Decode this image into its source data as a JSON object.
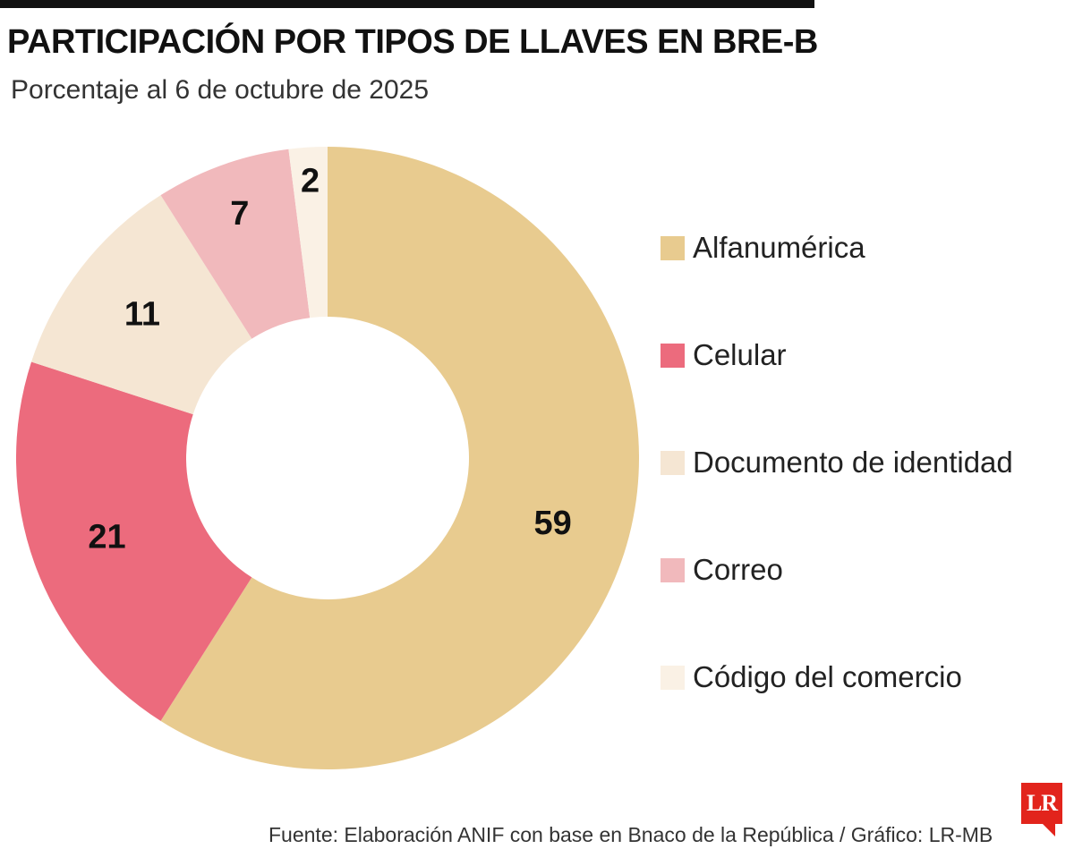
{
  "header": {
    "title": "PARTICIPACIÓN POR TIPOS DE LLAVES EN BRE-B",
    "subtitle": "Porcentaje al 6 de octubre de 2025"
  },
  "chart_data": {
    "type": "pie",
    "title": "PARTICIPACIÓN POR TIPOS DE LLAVES EN BRE-B",
    "subtitle": "Porcentaje al 6 de octubre de 2025",
    "donut": true,
    "legend_position": "right",
    "slices": [
      {
        "name": "Alfanumérica",
        "value": 59,
        "label": "59",
        "color": "#e8cb8f"
      },
      {
        "name": "Celular",
        "value": 21,
        "label": "21",
        "color": "#ec6b7d"
      },
      {
        "name": "Documento de identidad",
        "value": 11,
        "label": "11",
        "color": "#f5e6d3"
      },
      {
        "name": "Correo",
        "value": 7,
        "label": "7",
        "color": "#f1b9bc"
      },
      {
        "name": "Código del comercio",
        "value": 2,
        "label": "2",
        "color": "#faf1e5"
      }
    ]
  },
  "legend": {
    "items": [
      {
        "label": "Alfanumérica",
        "color": "#e8cb8f"
      },
      {
        "label": "Celular",
        "color": "#ec6b7d"
      },
      {
        "label": "Documento de identidad",
        "color": "#f5e6d3"
      },
      {
        "label": "Correo",
        "color": "#f1b9bc"
      },
      {
        "label": "Código del comercio",
        "color": "#faf1e5"
      }
    ]
  },
  "footer": {
    "source": "Fuente: Elaboración ANIF con base en Bnaco de la República / Gráfico: LR-MB",
    "logo_text": "LR"
  },
  "colors": {
    "rule": "#111111",
    "logo": "#e2241c"
  }
}
